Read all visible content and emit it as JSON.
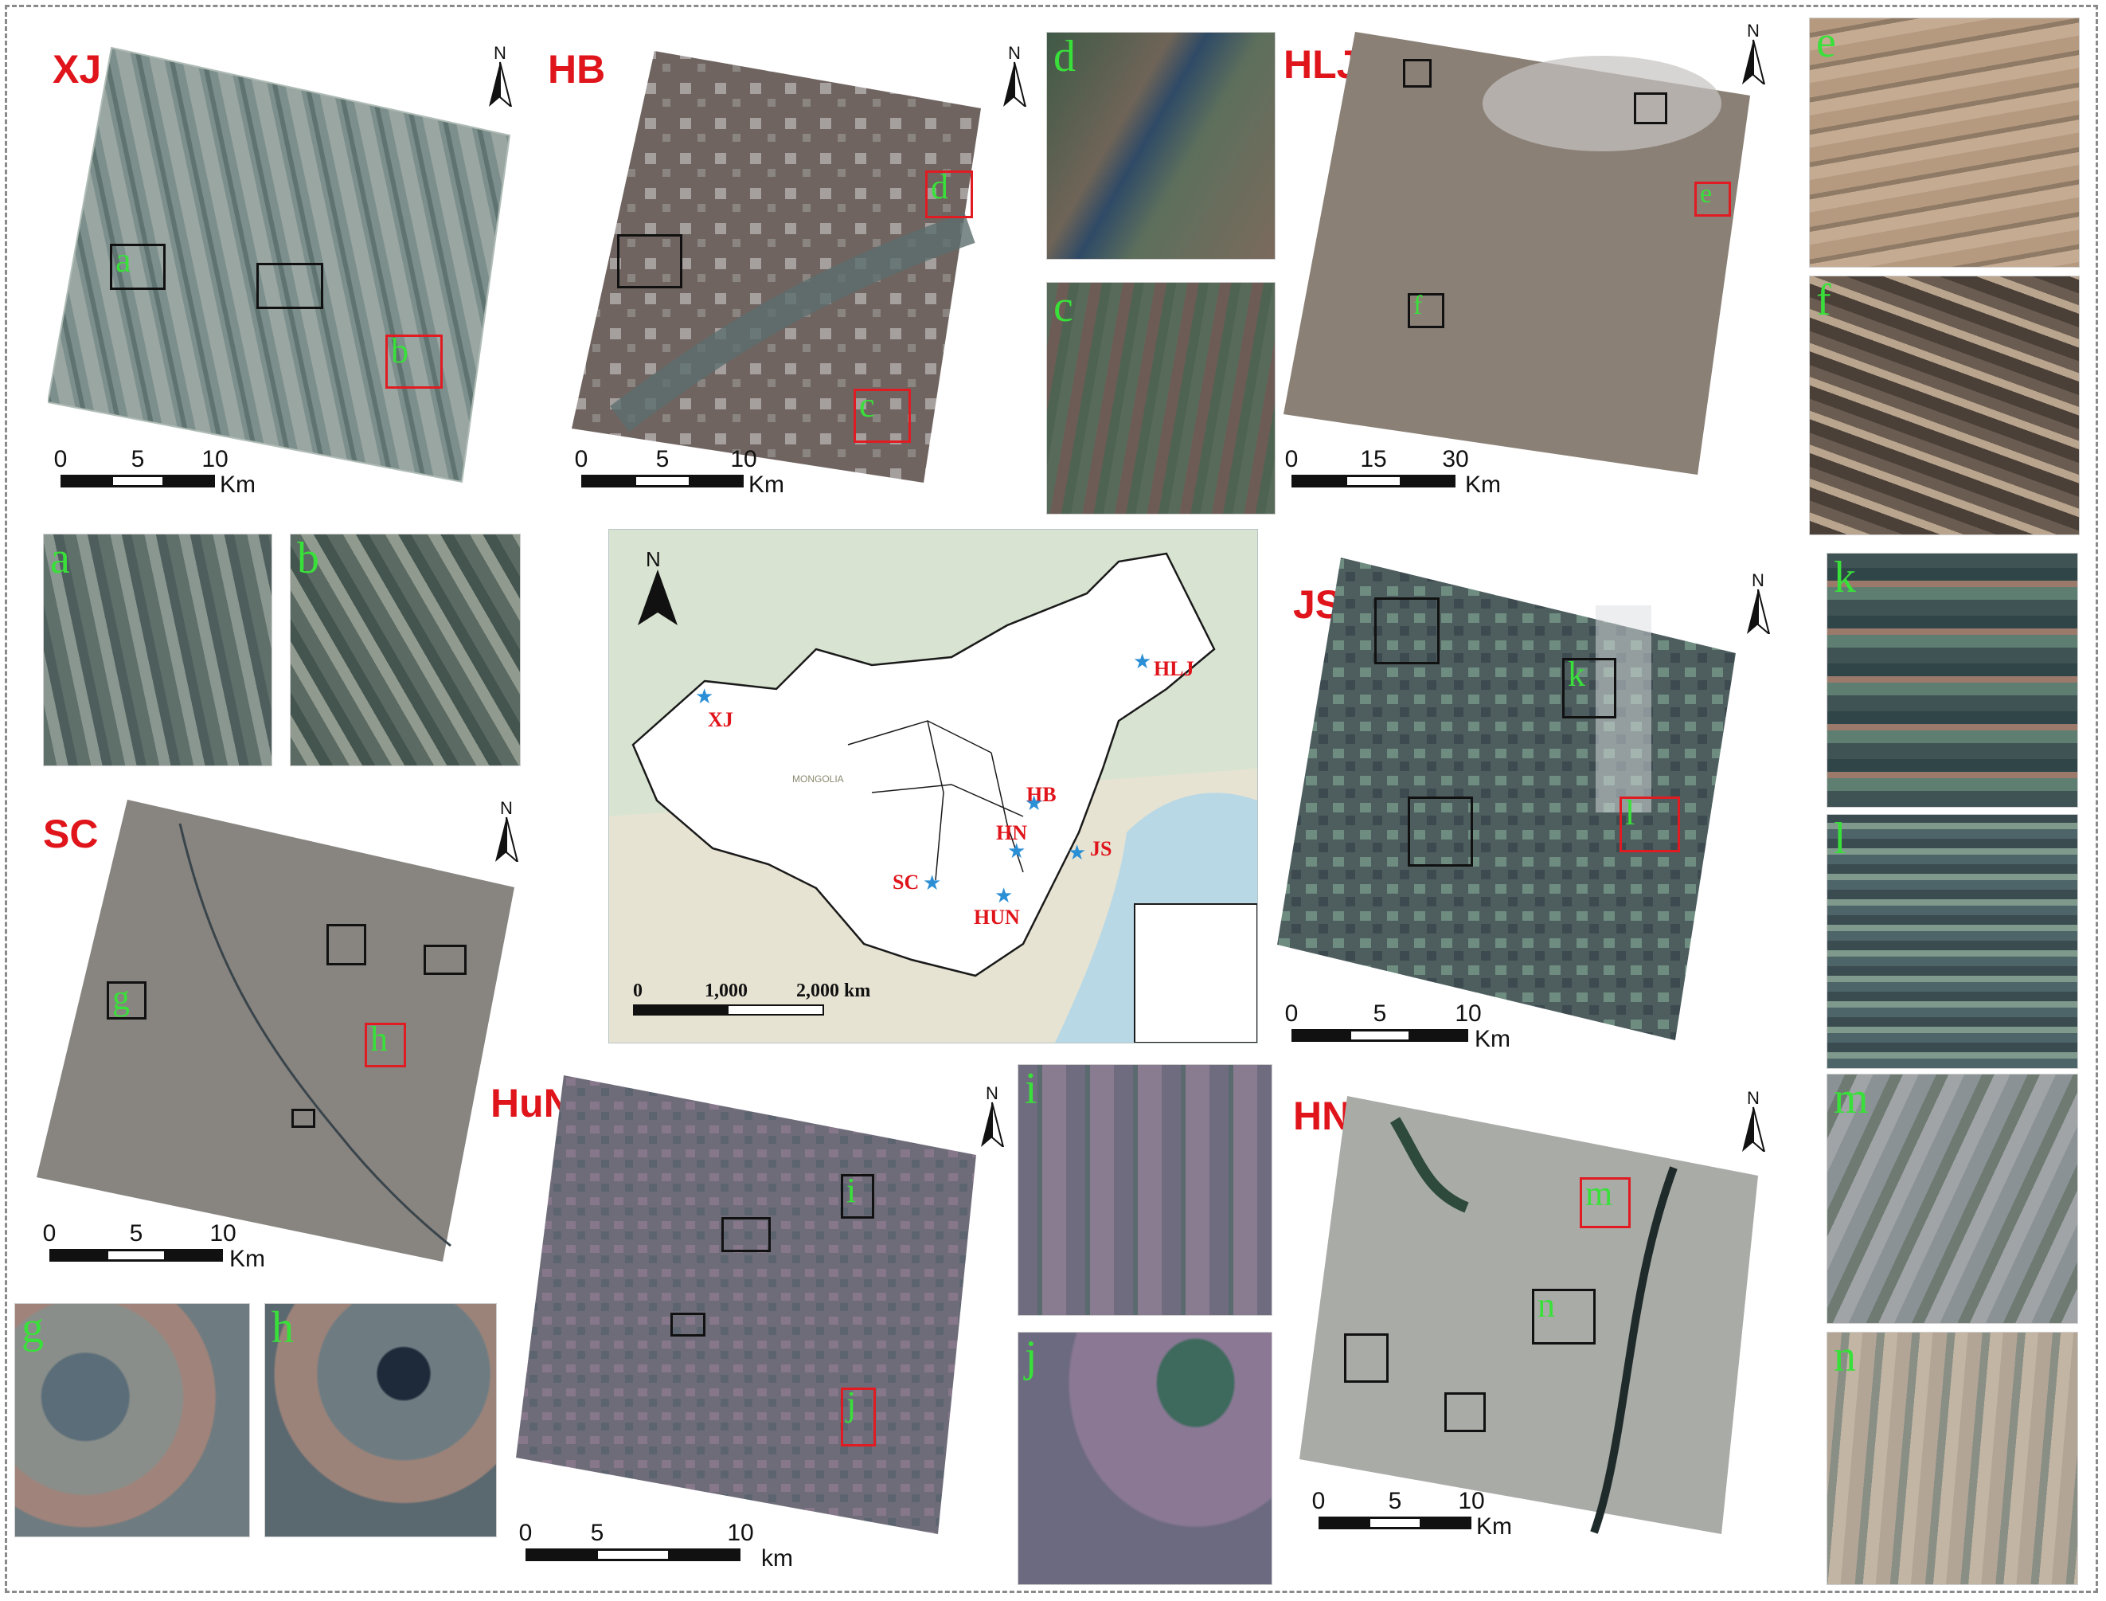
{
  "sites": {
    "xj": "XJ",
    "hb": "HB",
    "hlj": "HLJ",
    "sc": "SC",
    "js": "JS",
    "hun": "HuN",
    "hn": "HN"
  },
  "tiles": {
    "a": "a",
    "b": "b",
    "c": "c",
    "d": "d",
    "e": "e",
    "f": "f",
    "g": "g",
    "h": "h",
    "i": "i",
    "j": "j",
    "k": "k",
    "l": "l",
    "m": "m",
    "n": "n"
  },
  "north": "N",
  "scales": {
    "xj": {
      "t0": "0",
      "t1": "5",
      "t2": "10",
      "unit": "Km"
    },
    "hb": {
      "t0": "0",
      "t1": "5",
      "t2": "10",
      "unit": "Km"
    },
    "hlj": {
      "t0": "0",
      "t1": "15",
      "t2": "30",
      "unit": "Km"
    },
    "sc": {
      "t0": "0",
      "t1": "5",
      "t2": "10",
      "unit": "Km"
    },
    "js": {
      "t0": "0",
      "t1": "5",
      "t2": "10",
      "unit": "Km"
    },
    "hun": {
      "t0": "0",
      "t1": "5",
      "t2": "10",
      "unit": "km"
    },
    "hn": {
      "t0": "0",
      "t1": "5",
      "t2": "10",
      "unit": "Km"
    }
  },
  "china_map": {
    "north": "N",
    "points": {
      "xj": "XJ",
      "hlj": "HLJ",
      "hb": "HB",
      "hn": "HN",
      "js": "JS",
      "sc": "SC",
      "hun": "HUN"
    },
    "scale": {
      "t0": "0",
      "t1": "1,000",
      "t2": "2,000 km"
    },
    "region_text": {
      "mongolia": "MONGOLIA"
    }
  },
  "colors": {
    "site_label": "#e0141b",
    "tile_letter": "#39e03a",
    "marker": "#2b8fd6",
    "frame": "#8a8a8a"
  }
}
